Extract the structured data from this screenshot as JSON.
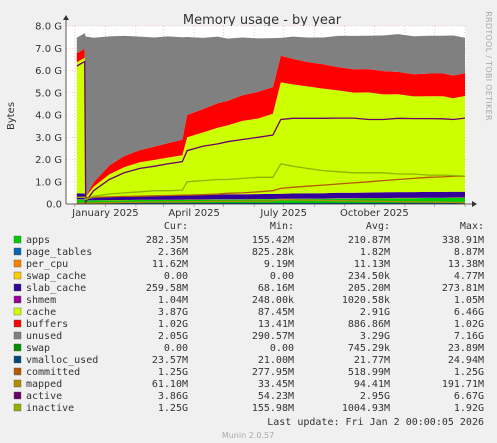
{
  "page": {
    "rrdtool_label": "RRDTOOL / TOBI OETIKER",
    "munin_version": "Munin 2.0.57",
    "last_update": "Last update: Fri Jan  2 00:00:05 2026"
  },
  "legend_headers": {
    "cur": "Cur:",
    "min": "Min:",
    "avg": "Avg:",
    "max": "Max:"
  },
  "legend": [
    {
      "name": "apps",
      "color": "#00cc00",
      "cur": "282.35M",
      "min": "155.42M",
      "avg": "210.87M",
      "max": "338.91M"
    },
    {
      "name": "page_tables",
      "color": "#0066b3",
      "cur": "2.36M",
      "min": "825.28k",
      "avg": "1.82M",
      "max": "8.87M"
    },
    {
      "name": "per_cpu",
      "color": "#ff8000",
      "cur": "11.62M",
      "min": "9.19M",
      "avg": "11.13M",
      "max": "13.38M"
    },
    {
      "name": "swap_cache",
      "color": "#ffcc00",
      "cur": "0.00",
      "min": "0.00",
      "avg": "234.50k",
      "max": "4.77M"
    },
    {
      "name": "slab_cache",
      "color": "#330099",
      "cur": "259.58M",
      "min": "68.16M",
      "avg": "205.20M",
      "max": "273.81M"
    },
    {
      "name": "shmem",
      "color": "#990099",
      "cur": "1.04M",
      "min": "248.00k",
      "avg": "1020.58k",
      "max": "1.05M"
    },
    {
      "name": "cache",
      "color": "#ccff00",
      "cur": "3.87G",
      "min": "87.45M",
      "avg": "2.91G",
      "max": "6.46G"
    },
    {
      "name": "buffers",
      "color": "#ff0000",
      "cur": "1.02G",
      "min": "13.41M",
      "avg": "886.86M",
      "max": "1.02G"
    },
    {
      "name": "unused",
      "color": "#808080",
      "cur": "2.05G",
      "min": "290.57M",
      "avg": "3.29G",
      "max": "7.16G"
    },
    {
      "name": "swap",
      "color": "#008f00",
      "cur": "0.00",
      "min": "0.00",
      "avg": "745.29k",
      "max": "23.89M"
    },
    {
      "name": "vmalloc_used",
      "color": "#00487d",
      "cur": "23.57M",
      "min": "21.00M",
      "avg": "21.77M",
      "max": "24.94M"
    },
    {
      "name": "committed",
      "color": "#b35a00",
      "cur": "1.25G",
      "min": "277.95M",
      "avg": "518.99M",
      "max": "1.25G"
    },
    {
      "name": "mapped",
      "color": "#b38f00",
      "cur": "61.10M",
      "min": "33.45M",
      "avg": "94.41M",
      "max": "191.71M"
    },
    {
      "name": "active",
      "color": "#6b006b",
      "cur": "3.86G",
      "min": "54.23M",
      "avg": "2.95G",
      "max": "6.67G"
    },
    {
      "name": "inactive",
      "color": "#8fb300",
      "cur": "1.25G",
      "min": "155.98M",
      "avg": "1004.93M",
      "max": "1.92G"
    }
  ],
  "chart_data": {
    "type": "area",
    "title": "Memory usage - by year",
    "ylabel": "Bytes",
    "xlabel": "",
    "ylim": [
      0,
      8
    ],
    "y_unit": "G",
    "y_ticks": [
      "0.0",
      "1.0 G",
      "2.0 G",
      "3.0 G",
      "4.0 G",
      "5.0 G",
      "6.0 G",
      "7.0 G",
      "8.0 G"
    ],
    "x_ticks": [
      {
        "label": "January 2025",
        "x": "2025-01-01"
      },
      {
        "label": "April 2025",
        "x": "2025-04-01"
      },
      {
        "label": "July 2025",
        "x": "2025-07-01"
      },
      {
        "label": "October 2025",
        "x": "2025-10-01"
      }
    ],
    "x_range": [
      "2024-11-22",
      "2026-01-02"
    ],
    "grid": true,
    "x": [
      "2024-12-03",
      "2024-12-11",
      "2024-12-12",
      "2024-12-20",
      "2025-01-05",
      "2025-01-20",
      "2025-02-05",
      "2025-02-20",
      "2025-03-05",
      "2025-03-20",
      "2025-03-25",
      "2025-04-10",
      "2025-04-25",
      "2025-05-05",
      "2025-05-20",
      "2025-06-05",
      "2025-06-20",
      "2025-06-28",
      "2025-07-10",
      "2025-07-25",
      "2025-08-10",
      "2025-08-25",
      "2025-09-10",
      "2025-09-25",
      "2025-10-10",
      "2025-10-25",
      "2025-11-10",
      "2025-11-25",
      "2025-12-10",
      "2025-12-20",
      "2026-01-01"
    ],
    "stack_order": [
      "apps",
      "page_tables",
      "per_cpu",
      "swap_cache",
      "slab_cache",
      "shmem",
      "cache",
      "buffers",
      "unused",
      "swap"
    ],
    "series": [
      {
        "name": "apps",
        "values": [
          0.2,
          0.2,
          0.15,
          0.16,
          0.17,
          0.17,
          0.18,
          0.18,
          0.18,
          0.18,
          0.19,
          0.19,
          0.2,
          0.2,
          0.2,
          0.21,
          0.21,
          0.22,
          0.22,
          0.23,
          0.23,
          0.24,
          0.24,
          0.25,
          0.25,
          0.26,
          0.26,
          0.27,
          0.27,
          0.28,
          0.28
        ]
      },
      {
        "name": "page_tables",
        "values": [
          0.002,
          0.002,
          0.001,
          0.001,
          0.001,
          0.002,
          0.002,
          0.002,
          0.002,
          0.002,
          0.002,
          0.002,
          0.002,
          0.002,
          0.002,
          0.002,
          0.002,
          0.002,
          0.002,
          0.002,
          0.002,
          0.002,
          0.002,
          0.002,
          0.002,
          0.002,
          0.002,
          0.002,
          0.002,
          0.002,
          0.002
        ]
      },
      {
        "name": "per_cpu",
        "values": [
          0.011,
          0.011,
          0.009,
          0.01,
          0.01,
          0.01,
          0.011,
          0.011,
          0.011,
          0.011,
          0.011,
          0.011,
          0.011,
          0.011,
          0.011,
          0.011,
          0.011,
          0.011,
          0.011,
          0.011,
          0.012,
          0.012,
          0.012,
          0.012,
          0.012,
          0.012,
          0.012,
          0.012,
          0.012,
          0.012,
          0.012
        ]
      },
      {
        "name": "swap_cache",
        "values": [
          0,
          0,
          0,
          0,
          0,
          0,
          0,
          0,
          0,
          0,
          0,
          0,
          0,
          0,
          0,
          0,
          0,
          0,
          0,
          0,
          0,
          0,
          0,
          0,
          0,
          0,
          0,
          0,
          0,
          0,
          0
        ]
      },
      {
        "name": "slab_cache",
        "values": [
          0.26,
          0.26,
          0.07,
          0.1,
          0.15,
          0.17,
          0.18,
          0.19,
          0.19,
          0.2,
          0.2,
          0.21,
          0.21,
          0.22,
          0.22,
          0.22,
          0.23,
          0.23,
          0.24,
          0.24,
          0.24,
          0.25,
          0.25,
          0.25,
          0.26,
          0.26,
          0.26,
          0.26,
          0.26,
          0.26,
          0.26
        ]
      },
      {
        "name": "shmem",
        "values": [
          0.001,
          0.001,
          0.0003,
          0.001,
          0.001,
          0.001,
          0.001,
          0.001,
          0.001,
          0.001,
          0.001,
          0.001,
          0.001,
          0.001,
          0.001,
          0.001,
          0.001,
          0.001,
          0.001,
          0.001,
          0.001,
          0.001,
          0.001,
          0.001,
          0.001,
          0.001,
          0.001,
          0.001,
          0.001,
          0.001,
          0.001
        ]
      },
      {
        "name": "cache",
        "values": [
          5.9,
          6.1,
          0.09,
          0.5,
          1.0,
          1.3,
          1.5,
          1.6,
          1.7,
          1.8,
          2.6,
          2.8,
          3.0,
          3.1,
          3.3,
          3.4,
          3.6,
          5.0,
          4.9,
          4.8,
          4.7,
          4.6,
          4.5,
          4.5,
          4.4,
          4.4,
          4.3,
          4.3,
          4.3,
          4.2,
          4.3
        ]
      },
      {
        "name": "buffers",
        "values": [
          0.4,
          0.4,
          0.01,
          0.2,
          0.4,
          0.5,
          0.55,
          0.6,
          0.65,
          0.7,
          1.0,
          1.05,
          1.1,
          1.1,
          1.15,
          1.2,
          1.2,
          1.2,
          1.15,
          1.1,
          1.1,
          1.05,
          1.05,
          1.05,
          1.05,
          1.0,
          1.0,
          1.02,
          1.02,
          1.02,
          1.02
        ]
      },
      {
        "name": "unused",
        "values": [
          0.7,
          0.7,
          7.2,
          6.5,
          5.8,
          5.4,
          5.1,
          4.9,
          4.8,
          4.6,
          3.5,
          3.2,
          3.0,
          2.8,
          2.6,
          2.4,
          2.2,
          0.8,
          1.0,
          1.1,
          1.2,
          1.4,
          1.5,
          1.5,
          1.6,
          1.7,
          1.7,
          1.7,
          1.7,
          1.8,
          1.6
        ]
      },
      {
        "name": "swap",
        "values": [
          0,
          0,
          0,
          0,
          0,
          0,
          0,
          0,
          0,
          0,
          0,
          0,
          0,
          0,
          0,
          0,
          0,
          0,
          0,
          0,
          0,
          0,
          0,
          0,
          0,
          0,
          0,
          0,
          0,
          0,
          0
        ]
      },
      {
        "name": "vmalloc_used",
        "values": [
          0.022,
          0.022,
          0.021,
          0.021,
          0.021,
          0.021,
          0.021,
          0.021,
          0.021,
          0.021,
          0.021,
          0.022,
          0.022,
          0.022,
          0.022,
          0.022,
          0.022,
          0.022,
          0.022,
          0.022,
          0.022,
          0.022,
          0.022,
          0.023,
          0.023,
          0.023,
          0.023,
          0.023,
          0.023,
          0.024,
          0.024
        ]
      },
      {
        "name": "committed",
        "values": [
          0.3,
          0.3,
          0.28,
          0.3,
          0.32,
          0.34,
          0.35,
          0.37,
          0.38,
          0.4,
          0.4,
          0.42,
          0.45,
          0.48,
          0.5,
          0.55,
          0.6,
          0.7,
          0.75,
          0.8,
          0.85,
          0.9,
          0.95,
          1.0,
          1.05,
          1.1,
          1.15,
          1.2,
          1.22,
          1.25,
          1.25
        ]
      },
      {
        "name": "mapped",
        "values": [
          0.05,
          0.05,
          0.04,
          0.05,
          0.06,
          0.07,
          0.08,
          0.09,
          0.1,
          0.1,
          0.11,
          0.11,
          0.12,
          0.12,
          0.12,
          0.13,
          0.13,
          0.19,
          0.18,
          0.17,
          0.16,
          0.15,
          0.14,
          0.13,
          0.12,
          0.11,
          0.1,
          0.09,
          0.08,
          0.07,
          0.06
        ]
      },
      {
        "name": "active",
        "values": [
          6.2,
          6.4,
          0.1,
          0.6,
          1.1,
          1.4,
          1.6,
          1.7,
          1.8,
          1.9,
          2.4,
          2.6,
          2.7,
          2.8,
          2.9,
          3.0,
          3.1,
          3.8,
          3.85,
          3.85,
          3.85,
          3.86,
          3.86,
          3.8,
          3.8,
          3.85,
          3.84,
          3.84,
          3.83,
          3.8,
          3.86
        ]
      },
      {
        "name": "inactive",
        "values": [
          0.3,
          0.3,
          0.2,
          0.35,
          0.45,
          0.5,
          0.55,
          0.6,
          0.6,
          0.62,
          1.0,
          1.05,
          1.1,
          1.1,
          1.15,
          1.2,
          1.2,
          1.8,
          1.7,
          1.6,
          1.5,
          1.45,
          1.4,
          1.4,
          1.4,
          1.35,
          1.35,
          1.3,
          1.3,
          1.28,
          1.25
        ]
      }
    ]
  }
}
